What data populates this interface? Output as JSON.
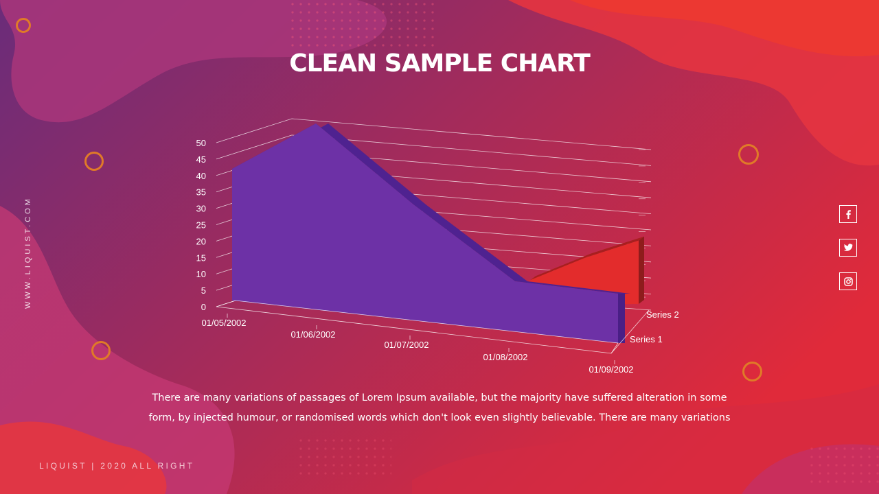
{
  "title": "CLEAN SAMPLE CHART",
  "body_text": "There are many variations of passages of Lorem Ipsum available, but the majority have suffered alteration in some form, by injected humour, or randomised words which don't look even slightly believable. There are many variations",
  "website": "WWW.LIQUIST.COM",
  "footer": "LIQUIST | 2020 ALL RIGHT",
  "social": [
    {
      "name": "facebook",
      "icon": "facebook-icon",
      "glyph": "f"
    },
    {
      "name": "twitter",
      "icon": "twitter-icon",
      "glyph": "t"
    },
    {
      "name": "instagram",
      "icon": "instagram-icon",
      "glyph": "ig"
    }
  ],
  "colors": {
    "background_left": "#6a2c7a",
    "background_right": "#e02a3a",
    "ring": "#e07a28",
    "series1": "#6d31a6",
    "series2": "#e32c2c"
  },
  "chart_data": {
    "type": "area",
    "style": "3d",
    "title": "",
    "xlabel": "",
    "ylabel": "",
    "categories": [
      "01/05/2002",
      "01/06/2002",
      "01/07/2002",
      "01/08/2002",
      "01/09/2002"
    ],
    "series": [
      {
        "name": "Series 1",
        "values": [
          32,
          45,
          28,
          12,
          12
        ]
      },
      {
        "name": "Series 2",
        "values": [
          0,
          0,
          12,
          21,
          28
        ]
      }
    ],
    "y_ticks": [
      0,
      5,
      10,
      15,
      20,
      25,
      30,
      35,
      40,
      45,
      50
    ],
    "ylim": [
      0,
      50
    ],
    "grid": true,
    "legend": "none"
  }
}
